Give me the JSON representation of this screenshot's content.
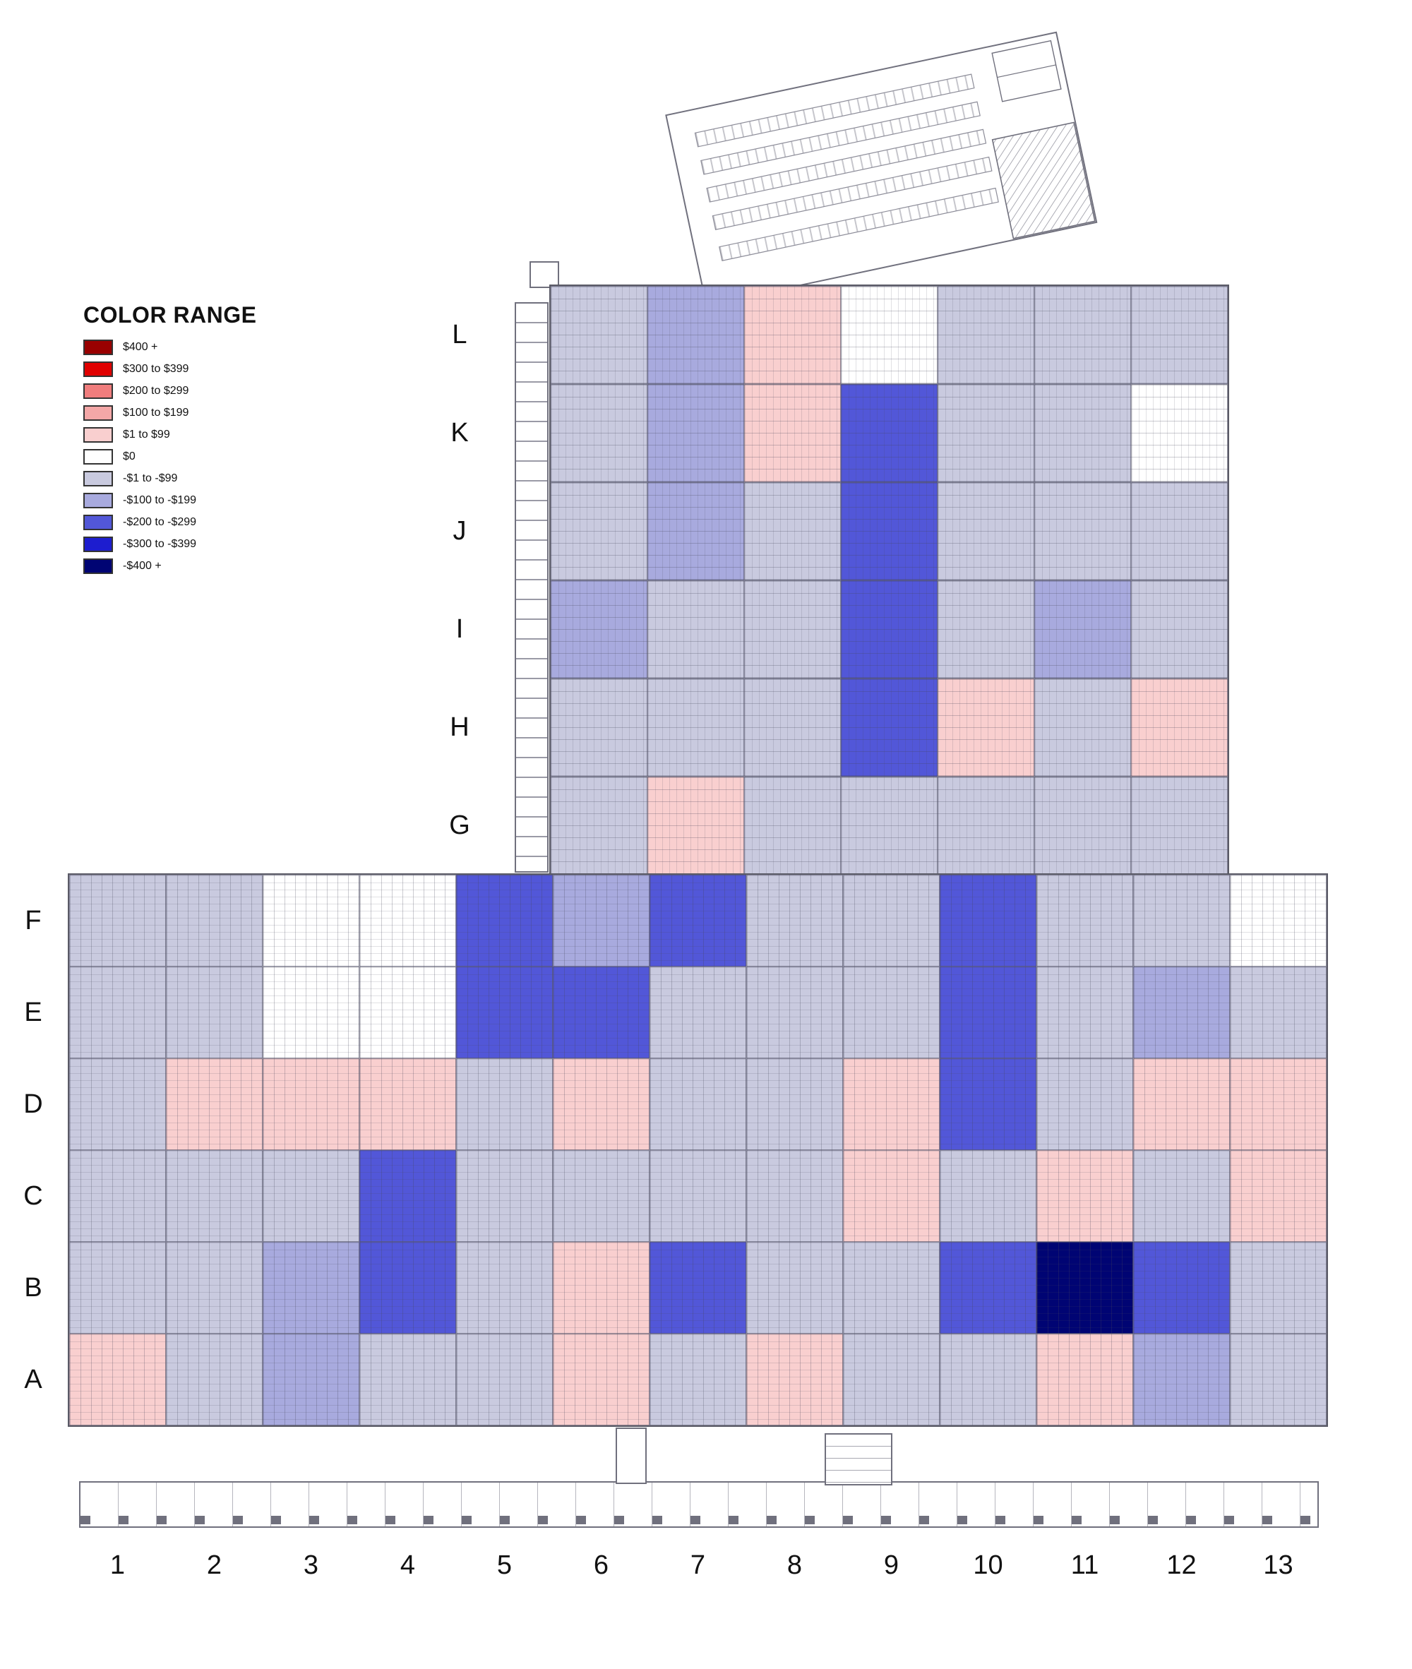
{
  "chart_data": {
    "type": "heatmap",
    "legend_title": "COLOR RANGE",
    "categories": [
      {
        "key": "p5",
        "label": "$400 +",
        "color": "#990000"
      },
      {
        "key": "p4",
        "label": "$300 to $399",
        "color": "#e00000"
      },
      {
        "key": "p3",
        "label": "$200 to $299",
        "color": "#f07d7d"
      },
      {
        "key": "p2",
        "label": "$100 to $199",
        "color": "#f4a7a7"
      },
      {
        "key": "p1",
        "label": "$1 to $99",
        "color": "#f9cfcf"
      },
      {
        "key": "z",
        "label": "$0",
        "color": "#ffffff"
      },
      {
        "key": "n1",
        "label": "-$1 to -$99",
        "color": "#c9cadf"
      },
      {
        "key": "n2",
        "label": "-$100 to -$199",
        "color": "#a8aade"
      },
      {
        "key": "n3",
        "label": "-$200 to -$299",
        "color": "#5257d8"
      },
      {
        "key": "n4",
        "label": "-$300 to -$399",
        "color": "#1d1dcf"
      },
      {
        "key": "n5",
        "label": "-$400 +",
        "color": "#000473"
      }
    ],
    "upper_section": {
      "rows": [
        "L",
        "K",
        "J",
        "I",
        "H",
        "G"
      ],
      "columns": [
        "6",
        "7",
        "8",
        "9",
        "10",
        "11",
        "12"
      ],
      "cells": [
        [
          "n1",
          "n2",
          "p1",
          "z",
          "n1",
          "n1",
          "n1"
        ],
        [
          "n1",
          "n2",
          "p1",
          "n3",
          "n1",
          "n1",
          "z"
        ],
        [
          "n1",
          "n2",
          "n1",
          "n3",
          "n1",
          "n1",
          "n1"
        ],
        [
          "n2",
          "n1",
          "n1",
          "n3",
          "n1",
          "n2",
          "n1"
        ],
        [
          "n1",
          "n1",
          "n1",
          "n3",
          "p1",
          "n1",
          "p1"
        ],
        [
          "n1",
          "p1",
          "n1",
          "n1",
          "n1",
          "n1",
          "n1"
        ]
      ]
    },
    "lower_section": {
      "rows": [
        "F",
        "E",
        "D",
        "C",
        "B",
        "A"
      ],
      "columns": [
        "1",
        "2",
        "3",
        "4",
        "5",
        "6",
        "7",
        "8",
        "9",
        "10",
        "11",
        "12",
        "13"
      ],
      "cells": [
        [
          "n1",
          "n1",
          "z",
          "z",
          "n3",
          "n2",
          "n3",
          "n1",
          "n1",
          "n3",
          "n1",
          "n1",
          "z"
        ],
        [
          "n1",
          "n1",
          "z",
          "z",
          "n3",
          "n3",
          "n1",
          "n1",
          "n1",
          "n3",
          "n1",
          "n2",
          "n1"
        ],
        [
          "n1",
          "p1",
          "p1",
          "p1",
          "n1",
          "p1",
          "n1",
          "n1",
          "p1",
          "n3",
          "n1",
          "p1",
          "p1"
        ],
        [
          "n1",
          "n1",
          "n1",
          "n3",
          "n1",
          "n1",
          "n1",
          "n1",
          "p1",
          "n1",
          "p1",
          "n1",
          "p1"
        ],
        [
          "n1",
          "n1",
          "n2",
          "n3",
          "n1",
          "p1",
          "n3",
          "n1",
          "n1",
          "n3",
          "n5",
          "n3",
          "n1"
        ],
        [
          "p1",
          "n1",
          "n2",
          "n1",
          "n1",
          "p1",
          "n1",
          "p1",
          "n1",
          "n1",
          "p1",
          "n2",
          "n1"
        ]
      ]
    },
    "column_labels": [
      "1",
      "2",
      "3",
      "4",
      "5",
      "6",
      "7",
      "8",
      "9",
      "10",
      "11",
      "12",
      "13"
    ]
  }
}
